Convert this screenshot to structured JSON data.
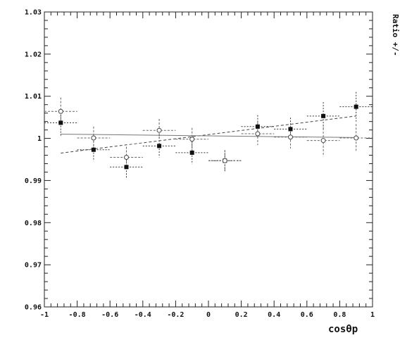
{
  "chart_data": {
    "type": "scatter",
    "title": "",
    "xlabel": "cosθp",
    "ylabel": "Ratio +/-",
    "xlim": [
      -1,
      1
    ],
    "ylim": [
      0.96,
      1.03
    ],
    "grid": false,
    "x_ticks": [
      -1,
      -0.8,
      -0.6,
      -0.4,
      -0.2,
      0,
      0.2,
      0.4,
      0.6,
      0.8,
      1
    ],
    "x_tick_labels": [
      "-1",
      "-0.8",
      "-0.6",
      "-0.4",
      "-0.2",
      "0",
      "0.2",
      "0.4",
      "0.6",
      "0.8",
      "1"
    ],
    "y_ticks": [
      0.96,
      0.97,
      0.98,
      0.99,
      1,
      1.01,
      1.02,
      1.03
    ],
    "y_tick_labels": [
      "0.96",
      "0.97",
      "0.98",
      "0.99",
      "1",
      "1.01",
      "1.02",
      "1.03"
    ],
    "series": [
      {
        "marker": "filled-square",
        "x": [
          -0.9,
          -0.7,
          -0.5,
          -0.3,
          -0.1,
          0.1,
          0.3,
          0.5,
          0.7,
          0.9
        ],
        "y": [
          1.0037,
          0.9973,
          0.9932,
          0.9982,
          0.9966,
          0.9947,
          1.0028,
          1.0022,
          1.0053,
          1.0075
        ],
        "x_err": [
          0.1,
          0.1,
          0.1,
          0.1,
          0.1,
          0.1,
          0.1,
          0.1,
          0.1,
          0.1
        ],
        "y_err": [
          0.0033,
          0.0027,
          0.0025,
          0.0027,
          0.0027,
          0.0025,
          0.0027,
          0.0027,
          0.0033,
          0.0035
        ],
        "fit": {
          "x": [
            -0.9,
            0.9
          ],
          "y": [
            0.9965,
            1.0053
          ]
        }
      },
      {
        "marker": "open-circle",
        "x": [
          -0.9,
          -0.7,
          -0.5,
          -0.3,
          -0.1,
          0.1,
          0.3,
          0.5,
          0.7,
          0.9
        ],
        "y": [
          1.0064,
          1.0001,
          0.9955,
          1.0019,
          0.9998,
          0.9947,
          1.0011,
          1.0003,
          0.9995,
          1.0001
        ],
        "x_err": [
          0.1,
          0.1,
          0.1,
          0.1,
          0.1,
          0.1,
          0.1,
          0.1,
          0.1,
          0.1
        ],
        "y_err": [
          0.0033,
          0.0027,
          0.0025,
          0.0027,
          0.0027,
          0.0025,
          0.0027,
          0.0027,
          0.0038,
          0.0033
        ],
        "fit": {
          "x": [
            -0.9,
            0.9
          ],
          "y": [
            1.001,
            1.0002
          ]
        }
      }
    ]
  }
}
